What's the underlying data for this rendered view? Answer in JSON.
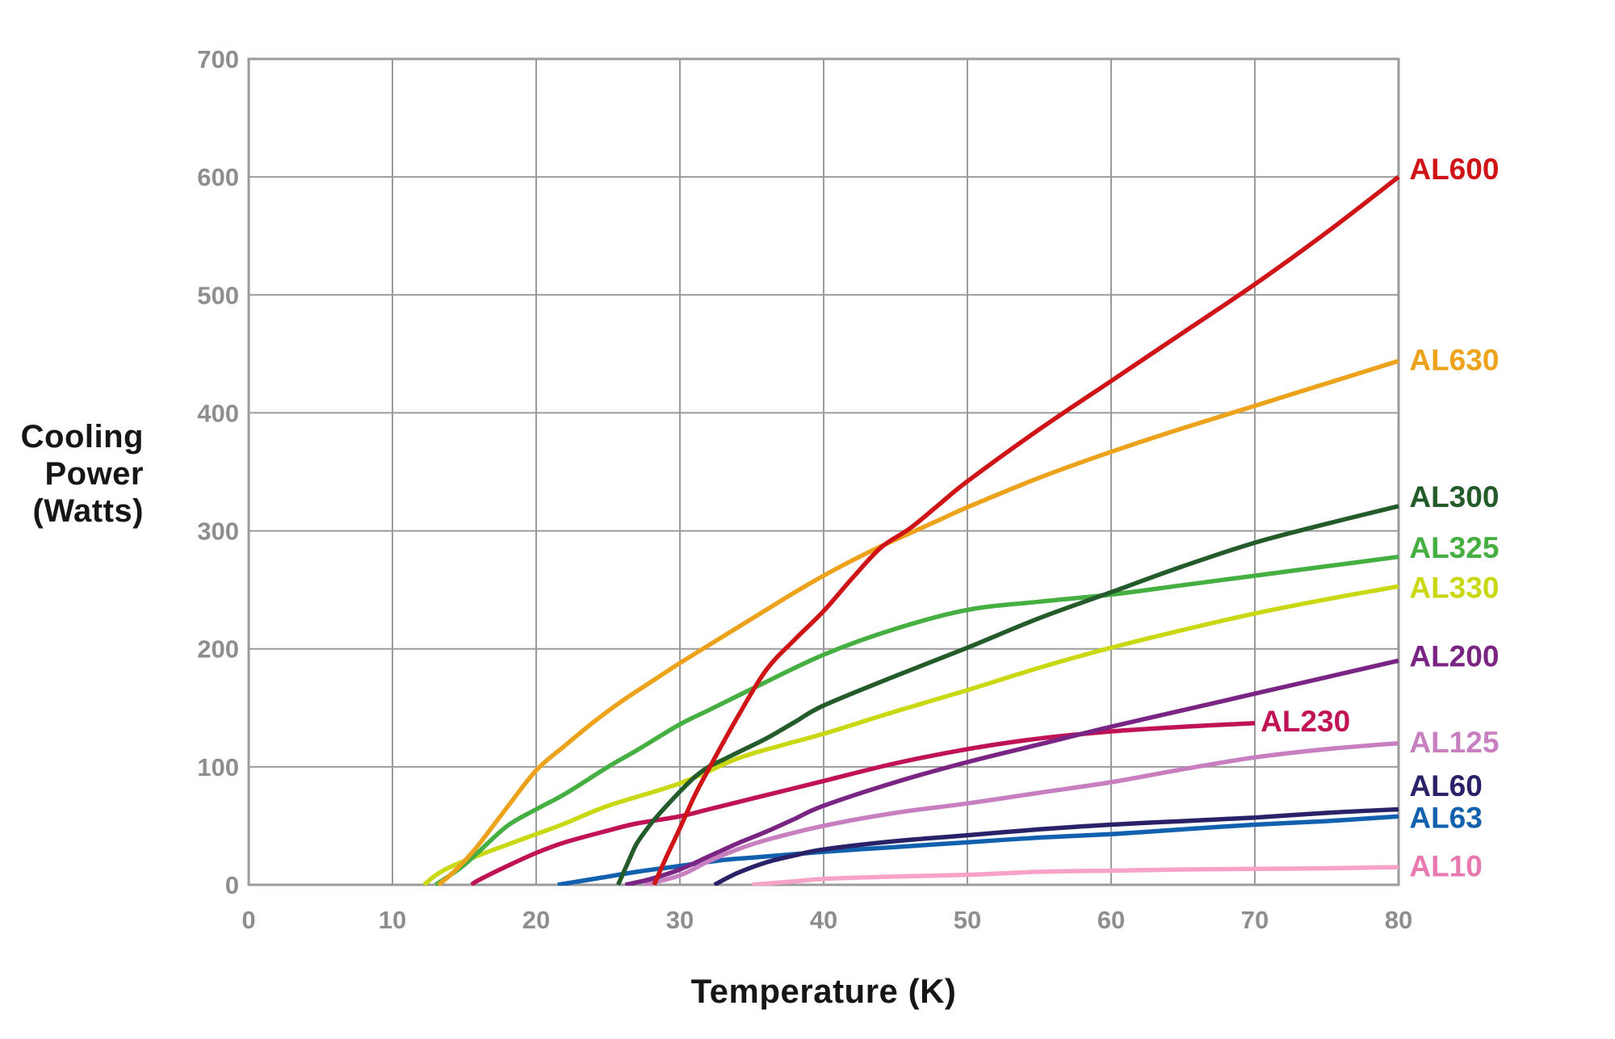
{
  "styles": {
    "background": "#ffffff",
    "grid_color": "#9b9b9b",
    "tick_color": "#8e8e8e",
    "axis_title_color": "#161616"
  },
  "chart_data": {
    "type": "line",
    "title": "",
    "xlabel": "Temperature (K)",
    "ylabel": "Cooling\nPower\n(Watts)",
    "xlim": [
      0,
      80
    ],
    "ylim": [
      0,
      700
    ],
    "x_ticks": [
      0,
      10,
      20,
      30,
      40,
      50,
      60,
      70,
      80
    ],
    "y_ticks": [
      0,
      100,
      200,
      300,
      400,
      500,
      600,
      700
    ],
    "grid": true,
    "legend_position": "right-edge-labels",
    "series": [
      {
        "name": "AL10",
        "color": "#f6a3c7",
        "label_color": "#e878b0",
        "label": {
          "t": 80.75,
          "p": 16,
          "anchor": "start"
        },
        "points": [
          [
            35,
            0
          ],
          [
            38,
            3
          ],
          [
            40,
            5
          ],
          [
            45,
            7
          ],
          [
            50,
            8.5
          ],
          [
            55,
            11
          ],
          [
            60,
            12
          ],
          [
            65,
            13
          ],
          [
            70,
            13.5
          ],
          [
            75,
            14
          ],
          [
            80,
            15
          ]
        ]
      },
      {
        "name": "AL63",
        "color": "#1261ae",
        "label": {
          "t": 80.75,
          "p": 57,
          "anchor": "start"
        },
        "points": [
          [
            21.5,
            0
          ],
          [
            23,
            3
          ],
          [
            25,
            7
          ],
          [
            27,
            11
          ],
          [
            30,
            16
          ],
          [
            33,
            21
          ],
          [
            35,
            23
          ],
          [
            40,
            28
          ],
          [
            45,
            32
          ],
          [
            50,
            36
          ],
          [
            55,
            40
          ],
          [
            60,
            43
          ],
          [
            65,
            47
          ],
          [
            70,
            51
          ],
          [
            75,
            54
          ],
          [
            80,
            58
          ]
        ]
      },
      {
        "name": "AL60",
        "color": "#292268",
        "label": {
          "t": 80.75,
          "p": 84,
          "anchor": "start"
        },
        "points": [
          [
            32.4,
            0
          ],
          [
            34,
            10
          ],
          [
            36,
            19
          ],
          [
            38,
            25
          ],
          [
            40,
            30
          ],
          [
            45,
            37
          ],
          [
            50,
            42
          ],
          [
            55,
            47
          ],
          [
            60,
            51
          ],
          [
            65,
            54
          ],
          [
            70,
            57
          ],
          [
            75,
            61
          ],
          [
            80,
            64
          ]
        ]
      },
      {
        "name": "AL125",
        "color": "#c77fc0",
        "label": {
          "t": 80.75,
          "p": 121,
          "anchor": "start"
        },
        "points": [
          [
            27.5,
            0
          ],
          [
            30,
            8
          ],
          [
            32,
            20
          ],
          [
            34,
            30
          ],
          [
            36,
            38
          ],
          [
            40,
            50
          ],
          [
            45,
            61
          ],
          [
            50,
            69
          ],
          [
            55,
            78
          ],
          [
            60,
            87
          ],
          [
            65,
            98
          ],
          [
            70,
            108
          ],
          [
            75,
            115
          ],
          [
            80,
            120
          ]
        ]
      },
      {
        "name": "AL230",
        "color": "#c01356",
        "label": {
          "t": 70.4,
          "p": 139,
          "anchor": "start"
        },
        "points": [
          [
            15.5,
            0
          ],
          [
            16,
            4
          ],
          [
            18,
            16
          ],
          [
            20,
            27
          ],
          [
            22,
            36
          ],
          [
            25,
            46
          ],
          [
            27,
            52
          ],
          [
            30,
            58
          ],
          [
            32,
            64
          ],
          [
            35,
            73
          ],
          [
            40,
            88
          ],
          [
            45,
            103
          ],
          [
            50,
            115
          ],
          [
            55,
            124
          ],
          [
            60,
            130
          ],
          [
            65,
            134
          ],
          [
            70,
            137
          ]
        ]
      },
      {
        "name": "AL200",
        "color": "#7a2483",
        "label": {
          "t": 80.75,
          "p": 194,
          "anchor": "start"
        },
        "points": [
          [
            26.2,
            0
          ],
          [
            28,
            5
          ],
          [
            30,
            13
          ],
          [
            32,
            24
          ],
          [
            34,
            35
          ],
          [
            36,
            45
          ],
          [
            38,
            56
          ],
          [
            40,
            67
          ],
          [
            45,
            87
          ],
          [
            50,
            104
          ],
          [
            55,
            119
          ],
          [
            60,
            134
          ],
          [
            65,
            148
          ],
          [
            70,
            162
          ],
          [
            75,
            176
          ],
          [
            80,
            190
          ]
        ]
      },
      {
        "name": "AL330",
        "color": "#c9d812",
        "label": {
          "t": 80.75,
          "p": 252,
          "anchor": "start"
        },
        "points": [
          [
            12.2,
            0
          ],
          [
            13,
            8
          ],
          [
            14,
            15
          ],
          [
            16,
            25
          ],
          [
            18,
            34
          ],
          [
            20,
            43
          ],
          [
            22,
            52
          ],
          [
            25,
            67
          ],
          [
            30,
            86
          ],
          [
            34,
            107
          ],
          [
            37,
            118
          ],
          [
            40,
            128
          ],
          [
            45,
            147
          ],
          [
            50,
            165
          ],
          [
            55,
            184
          ],
          [
            60,
            201
          ],
          [
            65,
            216
          ],
          [
            70,
            230
          ],
          [
            75,
            242
          ],
          [
            80,
            253
          ]
        ]
      },
      {
        "name": "AL325",
        "color": "#45af42",
        "label": {
          "t": 80.75,
          "p": 286,
          "anchor": "start"
        },
        "points": [
          [
            13,
            0
          ],
          [
            14,
            8
          ],
          [
            15,
            17
          ],
          [
            16,
            28
          ],
          [
            18,
            50
          ],
          [
            20,
            64
          ],
          [
            22,
            77
          ],
          [
            25,
            100
          ],
          [
            27,
            114
          ],
          [
            30,
            136
          ],
          [
            32,
            148
          ],
          [
            35,
            166
          ],
          [
            40,
            195
          ],
          [
            45,
            217
          ],
          [
            50,
            233
          ],
          [
            55,
            240
          ],
          [
            60,
            246
          ],
          [
            65,
            254
          ],
          [
            70,
            262
          ],
          [
            75,
            270
          ],
          [
            80,
            278
          ]
        ]
      },
      {
        "name": "AL300",
        "color": "#235b2a",
        "label": {
          "t": 80.75,
          "p": 329,
          "anchor": "start"
        },
        "points": [
          [
            25.7,
            0
          ],
          [
            26.5,
            22
          ],
          [
            27,
            35
          ],
          [
            28,
            52
          ],
          [
            29,
            66
          ],
          [
            30,
            79
          ],
          [
            31,
            91
          ],
          [
            32,
            100
          ],
          [
            33,
            106
          ],
          [
            34,
            112
          ],
          [
            36,
            124
          ],
          [
            38,
            138
          ],
          [
            40,
            152
          ],
          [
            45,
            177
          ],
          [
            50,
            201
          ],
          [
            55,
            226
          ],
          [
            60,
            248
          ],
          [
            65,
            270
          ],
          [
            70,
            290
          ],
          [
            75,
            306
          ],
          [
            80,
            321
          ]
        ]
      },
      {
        "name": "AL630",
        "color": "#eda21b",
        "label": {
          "t": 80.75,
          "p": 445,
          "anchor": "start"
        },
        "points": [
          [
            13.2,
            0
          ],
          [
            14,
            8
          ],
          [
            15,
            20
          ],
          [
            16,
            34
          ],
          [
            18,
            66
          ],
          [
            20,
            97
          ],
          [
            22,
            118
          ],
          [
            24,
            138
          ],
          [
            26,
            156
          ],
          [
            28,
            172
          ],
          [
            30,
            188
          ],
          [
            32,
            203
          ],
          [
            34,
            218
          ],
          [
            36,
            233
          ],
          [
            38,
            248
          ],
          [
            40,
            262
          ],
          [
            42,
            275
          ],
          [
            44,
            287
          ],
          [
            46,
            298
          ],
          [
            48,
            309
          ],
          [
            50,
            320
          ],
          [
            55,
            345
          ],
          [
            60,
            367
          ],
          [
            65,
            387
          ],
          [
            70,
            406
          ],
          [
            75,
            425
          ],
          [
            80,
            444
          ]
        ]
      },
      {
        "name": "AL600",
        "color": "#cf1417",
        "label": {
          "t": 80.75,
          "p": 607,
          "anchor": "start"
        },
        "points": [
          [
            28.2,
            0
          ],
          [
            29,
            22
          ],
          [
            30,
            48
          ],
          [
            31,
            75
          ],
          [
            32,
            98
          ],
          [
            34,
            142
          ],
          [
            36,
            182
          ],
          [
            38,
            208
          ],
          [
            40,
            232
          ],
          [
            42,
            260
          ],
          [
            44,
            286
          ],
          [
            46,
            302
          ],
          [
            48,
            322
          ],
          [
            50,
            342
          ],
          [
            55,
            386
          ],
          [
            60,
            427
          ],
          [
            65,
            468
          ],
          [
            70,
            509
          ],
          [
            75,
            553
          ],
          [
            80,
            600
          ]
        ]
      }
    ]
  }
}
